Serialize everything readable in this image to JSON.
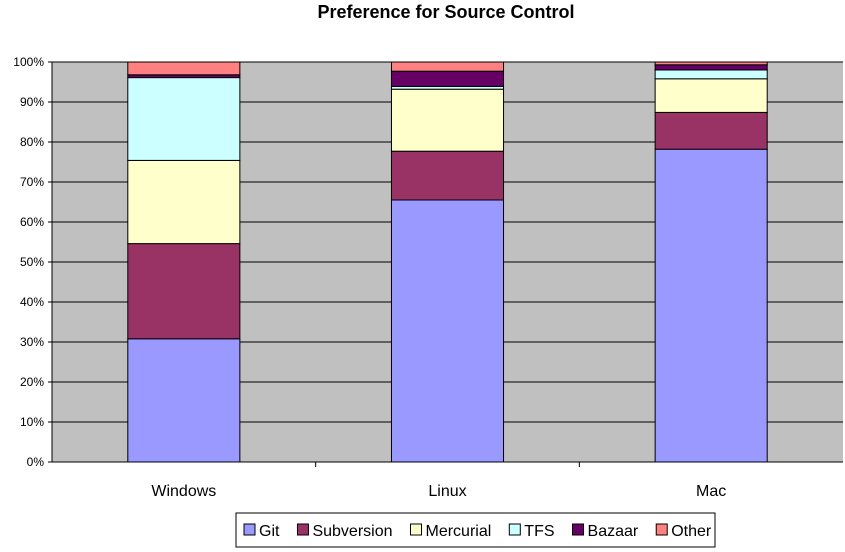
{
  "chart_data": {
    "type": "bar",
    "stacked": true,
    "percent_stacked": true,
    "title": "Preference for Source Control",
    "categories": [
      "Windows",
      "Linux",
      "Mac"
    ],
    "series": [
      {
        "name": "Git",
        "color": "#9999ff",
        "values": [
          30.8,
          65.5,
          78.2
        ]
      },
      {
        "name": "Subversion",
        "color": "#993366",
        "values": [
          23.8,
          12.2,
          9.2
        ]
      },
      {
        "name": "Mercurial",
        "color": "#ffffcc",
        "values": [
          20.8,
          15.5,
          8.4
        ]
      },
      {
        "name": "TFS",
        "color": "#ccffff",
        "values": [
          20.7,
          0.7,
          2.2
        ]
      },
      {
        "name": "Bazaar",
        "color": "#660066",
        "values": [
          0.7,
          3.8,
          1.3
        ]
      },
      {
        "name": "Other",
        "color": "#ff8080",
        "values": [
          3.2,
          2.3,
          0.7
        ]
      }
    ],
    "ylim": [
      0,
      100
    ],
    "yticks": [
      "0%",
      "10%",
      "20%",
      "30%",
      "40%",
      "50%",
      "60%",
      "70%",
      "80%",
      "90%",
      "100%"
    ],
    "grid": true,
    "plot_background": "#c0c0c0",
    "legend_position": "bottom"
  }
}
